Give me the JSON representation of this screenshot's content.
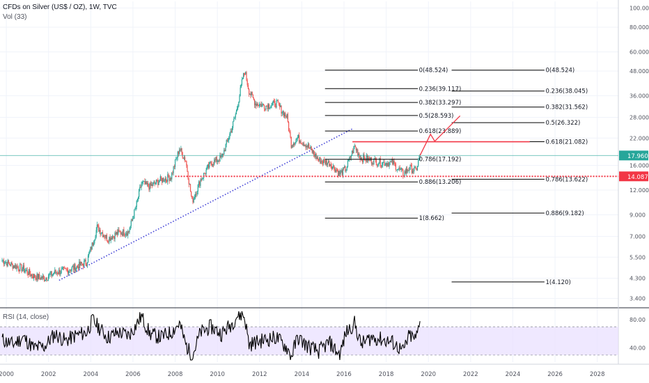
{
  "chart_data": {
    "type": "line",
    "title": "CFDs on Silver (US$ / OZ), 1W, TVC",
    "subtitle": "Vol (33)",
    "price_scale": "log",
    "ylim": [
      3.1,
      108
    ],
    "xlim": [
      1999.7,
      2029.0
    ],
    "x_ticks": [
      "2000",
      "2002",
      "2004",
      "2006",
      "2008",
      "2010",
      "2012",
      "2014",
      "2016",
      "2018",
      "2020",
      "2022",
      "2024",
      "2026",
      "2028"
    ],
    "y_ticks": [
      "100.000",
      "80.000",
      "60.000",
      "48.000",
      "36.000",
      "28.000",
      "22.000",
      "16.000",
      "12.000",
      "9.000",
      "7.000",
      "5.500",
      "4.300",
      "3.400"
    ],
    "series": [
      {
        "type": "candles",
        "x": [
          1999.8,
          2000.3,
          2000.8,
          2001.3,
          2001.8,
          2002.3,
          2002.8,
          2003.3,
          2003.8,
          2004.1,
          2004.3,
          2004.8,
          2005.3,
          2005.8,
          2006.1,
          2006.4,
          2006.8,
          2007.3,
          2007.8,
          2008.2,
          2008.5,
          2008.8,
          2009.2,
          2009.7,
          2010.2,
          2010.7,
          2010.9,
          2011.2,
          2011.3,
          2011.5,
          2011.8,
          2012.3,
          2012.8,
          2013.3,
          2013.5,
          2013.8,
          2014.3,
          2014.8,
          2015.3,
          2015.8,
          2016.1,
          2016.5,
          2016.8,
          2017.3,
          2017.8,
          2018.3,
          2018.8,
          2019.1,
          2019.4,
          2019.6
        ],
        "close": [
          5.3,
          5.0,
          4.8,
          4.4,
          4.3,
          4.6,
          4.7,
          4.9,
          5.2,
          6.5,
          7.8,
          6.8,
          7.3,
          7.4,
          9.5,
          13.0,
          12.5,
          13.5,
          14.0,
          19.5,
          17.0,
          10.5,
          13.5,
          16.5,
          17.5,
          25.0,
          30.0,
          44.0,
          48.0,
          38.0,
          33.0,
          32.0,
          33.0,
          28.0,
          20.5,
          22.0,
          20.0,
          17.0,
          16.5,
          14.5,
          15.5,
          20.0,
          17.5,
          17.0,
          16.5,
          16.5,
          14.5,
          15.5,
          15.0,
          17.96
        ],
        "color_up": "#26a69a",
        "color_down": "#ef5350"
      },
      {
        "type": "rsi",
        "x": [
          1999.8,
          2000.3,
          2000.8,
          2001.3,
          2001.8,
          2002.3,
          2002.8,
          2003.3,
          2003.8,
          2004.1,
          2004.3,
          2004.8,
          2005.3,
          2005.8,
          2006.1,
          2006.4,
          2006.8,
          2007.3,
          2007.8,
          2008.2,
          2008.5,
          2008.8,
          2009.2,
          2009.7,
          2010.2,
          2010.7,
          2010.9,
          2011.2,
          2011.3,
          2011.5,
          2011.8,
          2012.3,
          2012.8,
          2013.3,
          2013.5,
          2013.8,
          2014.3,
          2014.8,
          2015.3,
          2015.8,
          2016.1,
          2016.5,
          2016.8,
          2017.3,
          2017.8,
          2018.3,
          2018.8,
          2019.1,
          2019.4,
          2019.6
        ],
        "values": [
          52,
          45,
          55,
          40,
          42,
          60,
          50,
          58,
          62,
          80,
          72,
          55,
          62,
          58,
          70,
          85,
          60,
          55,
          62,
          75,
          45,
          28,
          62,
          70,
          60,
          75,
          85,
          88,
          82,
          45,
          48,
          52,
          55,
          40,
          28,
          55,
          42,
          35,
          48,
          30,
          62,
          75,
          45,
          55,
          52,
          48,
          35,
          58,
          52,
          78
        ]
      }
    ],
    "fib_left": [
      {
        "label": "0(48.524)",
        "value": 48.524
      },
      {
        "label": "0.236(39.117)",
        "value": 39.117
      },
      {
        "label": "0.382(33.297)",
        "value": 33.297
      },
      {
        "label": "0.5(28.593)",
        "value": 28.593
      },
      {
        "label": "0.618(23.889)",
        "value": 23.889
      },
      {
        "label": "0.786(17.192)",
        "value": 17.192
      },
      {
        "label": "0.886(13.206)",
        "value": 13.206
      },
      {
        "label": "1(8.662)",
        "value": 8.662
      }
    ],
    "fib_right": [
      {
        "label": "0(48.524)",
        "value": 48.524
      },
      {
        "label": "0.236(38.045)",
        "value": 38.045
      },
      {
        "label": "0.382(31.562)",
        "value": 31.562
      },
      {
        "label": "0.5(26.322)",
        "value": 26.322
      },
      {
        "label": "0.618(21.082)",
        "value": 21.082
      },
      {
        "label": "0.786(13.622)",
        "value": 13.622
      },
      {
        "label": "0.886(9.182)",
        "value": 9.182
      },
      {
        "label": "1(4.120)",
        "value": 4.12
      }
    ],
    "current_price": {
      "label": "17.960",
      "value": 17.96,
      "color": "#26a69a"
    },
    "support_level": {
      "label": "14.087",
      "value": 14.087,
      "color": "#f23645"
    },
    "resistance_line": {
      "value": 21.082,
      "color": "#f23645"
    },
    "trendline": {
      "color": "#3f3fd6",
      "points": [
        {
          "x": 2002.5,
          "y": 4.2
        },
        {
          "x": 2016.4,
          "y": 24.5
        }
      ]
    },
    "projection": {
      "color": "#f23645",
      "points": [
        {
          "x": 2019.6,
          "y": 17.96
        },
        {
          "x": 2020.1,
          "y": 23.0
        },
        {
          "x": 2020.3,
          "y": 21.2
        },
        {
          "x": 2021.5,
          "y": 28.5
        }
      ]
    },
    "rsi": {
      "title": "RSI (14, close)",
      "ylim": [
        20,
        95
      ],
      "band": [
        30,
        70
      ],
      "y_ticks": [
        "80.00",
        "40.00"
      ],
      "band_color": "#e9e0ff",
      "line_color": "#000000"
    }
  }
}
